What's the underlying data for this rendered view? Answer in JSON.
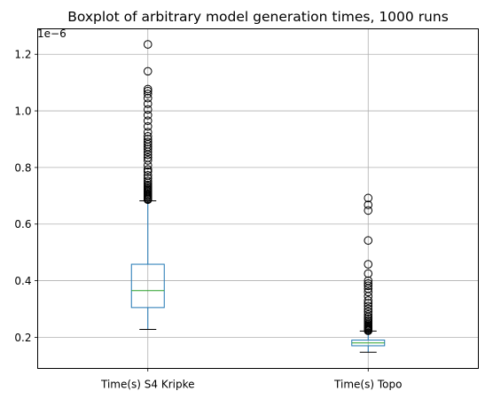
{
  "chart_data": {
    "type": "boxplot",
    "title": "Boxplot of arbitrary model generation times, 1000 runs",
    "xlabel": "",
    "ylabel": "",
    "scale_label": "1e−6",
    "ylim": [
      0.09,
      1.29
    ],
    "yticks": [
      0.2,
      0.4,
      0.6,
      0.8,
      1.0,
      1.2
    ],
    "ytick_labels": [
      "0.2",
      "0.4",
      "0.6",
      "0.8",
      "1.0",
      "1.2"
    ],
    "grid": true,
    "categories": [
      "Time(s) S4 Kripke",
      "Time(s) Topo"
    ],
    "boxes": [
      {
        "name": "Time(s) S4 Kripke",
        "whisker_low": 0.228,
        "q1": 0.305,
        "median": 0.365,
        "q3": 0.458,
        "whisker_high": 0.682,
        "outliers": [
          0.686,
          0.689,
          0.693,
          0.697,
          0.701,
          0.704,
          0.708,
          0.712,
          0.716,
          0.72,
          0.724,
          0.728,
          0.733,
          0.738,
          0.745,
          0.752,
          0.762,
          0.772,
          0.785,
          0.793,
          0.808,
          0.825,
          0.835,
          0.845,
          0.855,
          0.865,
          0.873,
          0.882,
          0.89,
          0.9,
          0.91,
          0.925,
          0.945,
          0.965,
          0.985,
          1.005,
          1.025,
          1.045,
          1.06,
          1.07,
          1.077,
          1.14,
          1.235
        ]
      },
      {
        "name": "Time(s) Topo",
        "whisker_low": 0.147,
        "q1": 0.17,
        "median": 0.18,
        "q3": 0.19,
        "whisker_high": 0.222,
        "outliers": [
          0.223,
          0.226,
          0.229,
          0.232,
          0.235,
          0.238,
          0.241,
          0.245,
          0.25,
          0.255,
          0.26,
          0.266,
          0.272,
          0.28,
          0.29,
          0.3,
          0.31,
          0.32,
          0.33,
          0.345,
          0.36,
          0.372,
          0.382,
          0.39,
          0.4,
          0.425,
          0.458,
          0.542,
          0.648,
          0.668,
          0.692
        ]
      }
    ]
  },
  "colors": {
    "box": "#1f77b4",
    "median": "#2ca02c",
    "grid": "#b0b0b0",
    "axis": "#000000",
    "text": "#000000"
  }
}
